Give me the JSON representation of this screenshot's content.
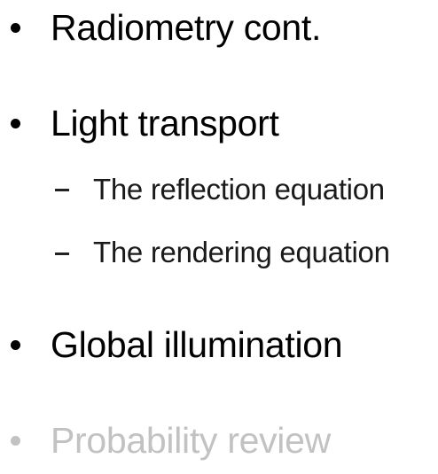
{
  "outline": {
    "items": [
      {
        "label": "Radiometry cont.",
        "state": "normal"
      },
      {
        "label": "Light transport",
        "state": "normal",
        "subitems": [
          {
            "label": "The reflection equation"
          },
          {
            "label": "The rendering equation"
          }
        ]
      },
      {
        "label": "Global illumination",
        "state": "normal"
      },
      {
        "label": "Probability review",
        "state": "dimmed"
      }
    ]
  },
  "colors": {
    "text": "#000000",
    "dimmed": "#c2c2c2",
    "background": "#ffffff"
  }
}
